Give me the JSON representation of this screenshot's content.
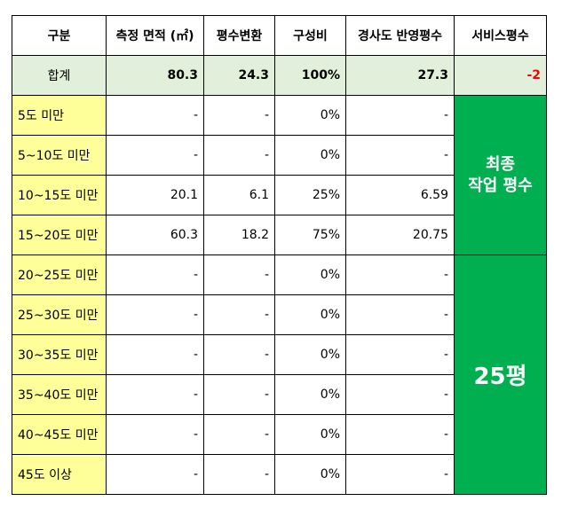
{
  "headers": [
    "구분",
    "측정 면적 (㎡)",
    "평수변환",
    "구성비",
    "경사도 반영평수",
    "서비스평수"
  ],
  "total": {
    "label": "합계",
    "area": "80.3",
    "pyeong": "24.3",
    "ratio": "100%",
    "slope": "27.3",
    "service": "-2"
  },
  "rows": [
    {
      "label": "5도 미만",
      "area": "-",
      "pyeong": "-",
      "ratio": "0%",
      "slope": "-"
    },
    {
      "label": "5~10도 미만",
      "area": "-",
      "pyeong": "-",
      "ratio": "0%",
      "slope": "-"
    },
    {
      "label": "10~15도 미만",
      "area": "20.1",
      "pyeong": "6.1",
      "ratio": "25%",
      "slope": "6.59"
    },
    {
      "label": "15~20도 미만",
      "area": "60.3",
      "pyeong": "18.2",
      "ratio": "75%",
      "slope": "20.75"
    },
    {
      "label": "20~25도 미만",
      "area": "-",
      "pyeong": "-",
      "ratio": "0%",
      "slope": "-"
    },
    {
      "label": "25~30도 미만",
      "area": "-",
      "pyeong": "-",
      "ratio": "0%",
      "slope": "-"
    },
    {
      "label": "30~35도 미만",
      "area": "-",
      "pyeong": "-",
      "ratio": "0%",
      "slope": "-"
    },
    {
      "label": "35~40도 미만",
      "area": "-",
      "pyeong": "-",
      "ratio": "0%",
      "slope": "-"
    },
    {
      "label": "40~45도 미만",
      "area": "-",
      "pyeong": "-",
      "ratio": "0%",
      "slope": "-"
    },
    {
      "label": "45도 이상",
      "area": "-",
      "pyeong": "-",
      "ratio": "0%",
      "slope": "-"
    }
  ],
  "merged": {
    "final_line1": "최종",
    "final_line2": "작업 평수",
    "big": "25평"
  },
  "colors": {
    "header_bg": "#ffffff",
    "total_bg": "#e2efda",
    "label_bg": "#ffff99",
    "merge_bg": "#00b050",
    "negative": "#ff0000"
  }
}
